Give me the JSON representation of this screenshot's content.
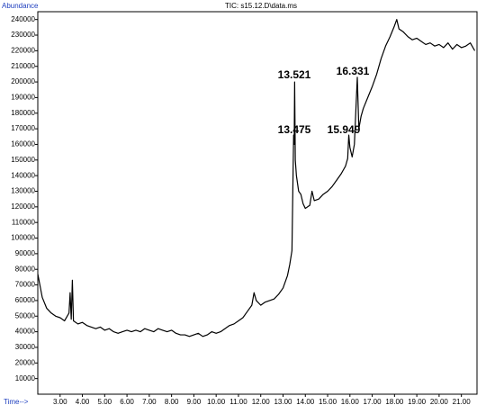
{
  "chart_data": {
    "type": "line",
    "title": "TIC: s15.12.D\\data.ms",
    "y_label": "Abundance",
    "x_label": "Time-->",
    "color": "#000000",
    "xlim": [
      2.0,
      21.7
    ],
    "ylim": [
      0,
      245000
    ],
    "xticks": [
      {
        "value": 3,
        "label": "3.00"
      },
      {
        "value": 4,
        "label": "4.00"
      },
      {
        "value": 5,
        "label": "5.00"
      },
      {
        "value": 6,
        "label": "6.00"
      },
      {
        "value": 7,
        "label": "7.00"
      },
      {
        "value": 8,
        "label": "8.00"
      },
      {
        "value": 9,
        "label": "9.00"
      },
      {
        "value": 10,
        "label": "10.00"
      },
      {
        "value": 11,
        "label": "11.00"
      },
      {
        "value": 12,
        "label": "12.00"
      },
      {
        "value": 13,
        "label": "13.00"
      },
      {
        "value": 14,
        "label": "14.00"
      },
      {
        "value": 15,
        "label": "15.00"
      },
      {
        "value": 16,
        "label": "16.00"
      },
      {
        "value": 17,
        "label": "17.00"
      },
      {
        "value": 18,
        "label": "18.00"
      },
      {
        "value": 19,
        "label": "19.00"
      },
      {
        "value": 20,
        "label": "20.00"
      },
      {
        "value": 21,
        "label": "21.00"
      }
    ],
    "yticks": [
      10000,
      20000,
      30000,
      40000,
      50000,
      60000,
      70000,
      80000,
      90000,
      100000,
      110000,
      120000,
      130000,
      140000,
      150000,
      160000,
      170000,
      180000,
      190000,
      200000,
      210000,
      220000,
      230000,
      240000
    ],
    "annotations": [
      "13.521",
      "13.475",
      "15.949",
      "16.331"
    ],
    "x": [
      2.0,
      2.2,
      2.4,
      2.6,
      2.8,
      3.0,
      3.2,
      3.4,
      3.45,
      3.5,
      3.55,
      3.6,
      3.8,
      4.0,
      4.2,
      4.4,
      4.6,
      4.8,
      5.0,
      5.2,
      5.4,
      5.6,
      5.8,
      6.0,
      6.2,
      6.4,
      6.6,
      6.8,
      7.0,
      7.2,
      7.4,
      7.6,
      7.8,
      8.0,
      8.2,
      8.4,
      8.6,
      8.8,
      9.0,
      9.2,
      9.4,
      9.6,
      9.8,
      10.0,
      10.2,
      10.4,
      10.6,
      10.8,
      11.0,
      11.2,
      11.4,
      11.6,
      11.7,
      11.8,
      12.0,
      12.2,
      12.4,
      12.6,
      12.8,
      13.0,
      13.2,
      13.3,
      13.4,
      13.475,
      13.5,
      13.521,
      13.55,
      13.6,
      13.7,
      13.8,
      13.9,
      14.0,
      14.2,
      14.3,
      14.4,
      14.6,
      14.8,
      15.0,
      15.2,
      15.4,
      15.6,
      15.8,
      15.9,
      15.949,
      16.0,
      16.1,
      16.2,
      16.331,
      16.4,
      16.5,
      16.6,
      16.8,
      17.0,
      17.2,
      17.4,
      17.6,
      17.8,
      18.0,
      18.1,
      18.2,
      18.4,
      18.6,
      18.8,
      19.0,
      19.2,
      19.4,
      19.6,
      19.8,
      20.0,
      20.2,
      20.4,
      20.6,
      20.8,
      21.0,
      21.2,
      21.4,
      21.6
    ],
    "values": [
      77000,
      62000,
      55000,
      52000,
      50000,
      49000,
      47000,
      52000,
      65000,
      48000,
      73000,
      47000,
      45000,
      46000,
      44000,
      43000,
      42000,
      43000,
      41000,
      42000,
      40000,
      39000,
      40000,
      41000,
      40000,
      41000,
      40000,
      42000,
      41000,
      40000,
      42000,
      41000,
      40000,
      41000,
      39000,
      38000,
      38000,
      37000,
      38000,
      39000,
      37000,
      38000,
      40000,
      39000,
      40000,
      42000,
      44000,
      45000,
      47000,
      49000,
      53000,
      57000,
      65000,
      60000,
      57000,
      59000,
      60000,
      61000,
      64000,
      68000,
      76000,
      83000,
      92000,
      166000,
      160000,
      200000,
      150000,
      140000,
      130000,
      128000,
      122000,
      119000,
      121000,
      130000,
      124000,
      125000,
      128000,
      130000,
      133000,
      137000,
      141000,
      146000,
      151000,
      166000,
      158000,
      152000,
      160000,
      203000,
      170000,
      178000,
      183000,
      190000,
      197000,
      205000,
      215000,
      223000,
      229000,
      236000,
      240000,
      234000,
      232000,
      229000,
      227000,
      228000,
      226000,
      224000,
      225000,
      223000,
      224000,
      222000,
      225000,
      221000,
      224000,
      222000,
      223000,
      225000,
      220000
    ]
  }
}
